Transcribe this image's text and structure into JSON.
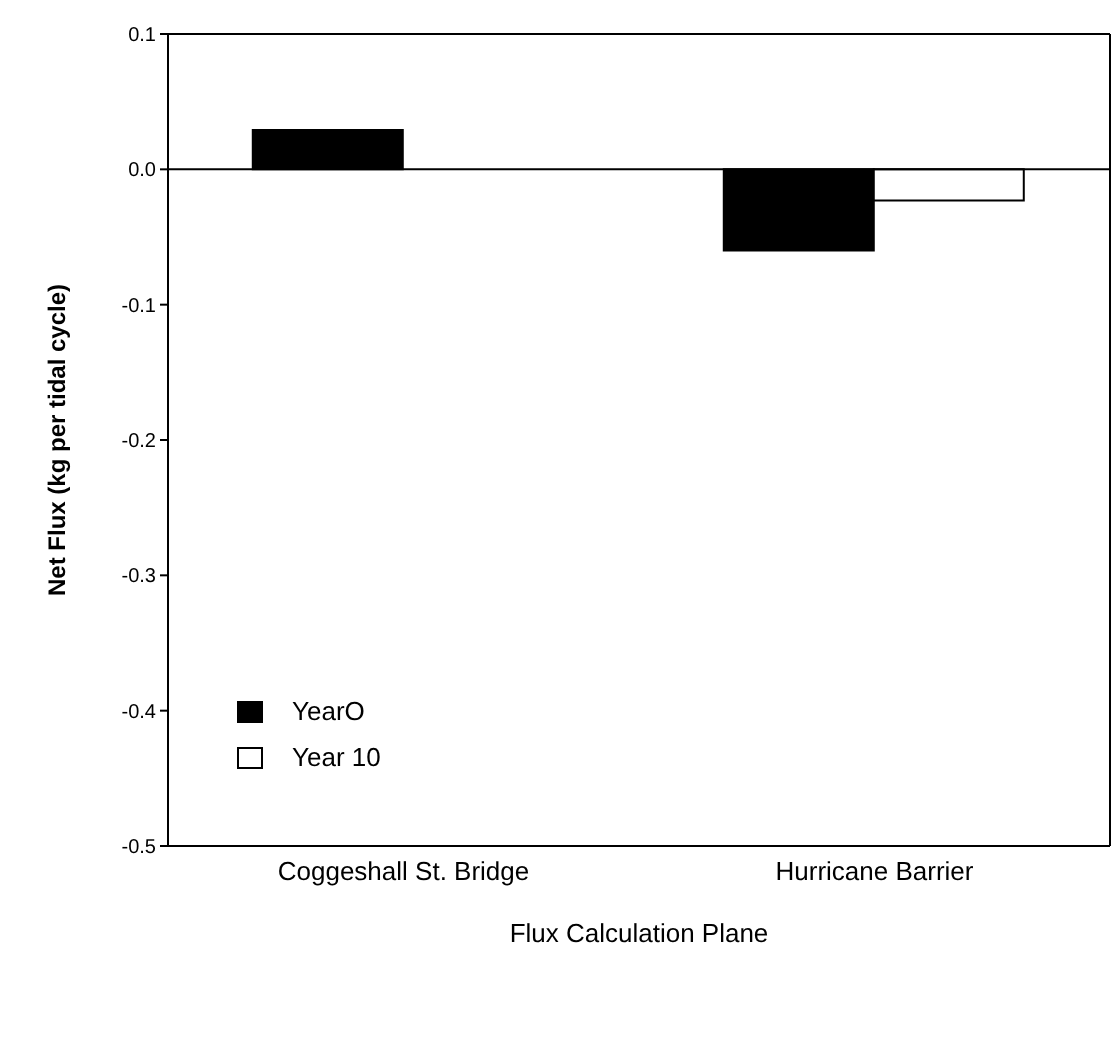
{
  "chart_data": {
    "type": "bar",
    "xlabel": "Flux Calculation Plane",
    "ylabel": "Net Flux (kg per tidal cycle)",
    "categories": [
      "Coggeshall St. Bridge",
      "Hurricane  Barrier"
    ],
    "series": [
      {
        "name": "YearO",
        "color": "#000000",
        "values": [
          0.029,
          -0.06
        ]
      },
      {
        "name": "Year 10",
        "color": "#ffffff",
        "values": [
          0,
          -0.023
        ]
      }
    ],
    "ylim": [
      -0.5,
      0.1
    ],
    "yticks": [
      {
        "value": 0.1,
        "label": "0.1"
      },
      {
        "value": 0,
        "label": "0.0"
      },
      {
        "value": -0.1,
        "label": "-0.1"
      },
      {
        "value": -0.2,
        "label": "-0.2"
      },
      {
        "value": -0.3,
        "label": "-0.3"
      },
      {
        "value": -0.4,
        "label": "-0.4"
      },
      {
        "value": -0.5,
        "label": "-0.5"
      }
    ],
    "ref_lines": [
      {
        "axis": "y",
        "value": 0,
        "color": "#000000"
      }
    ],
    "legend": "bottom left",
    "grid": false
  }
}
